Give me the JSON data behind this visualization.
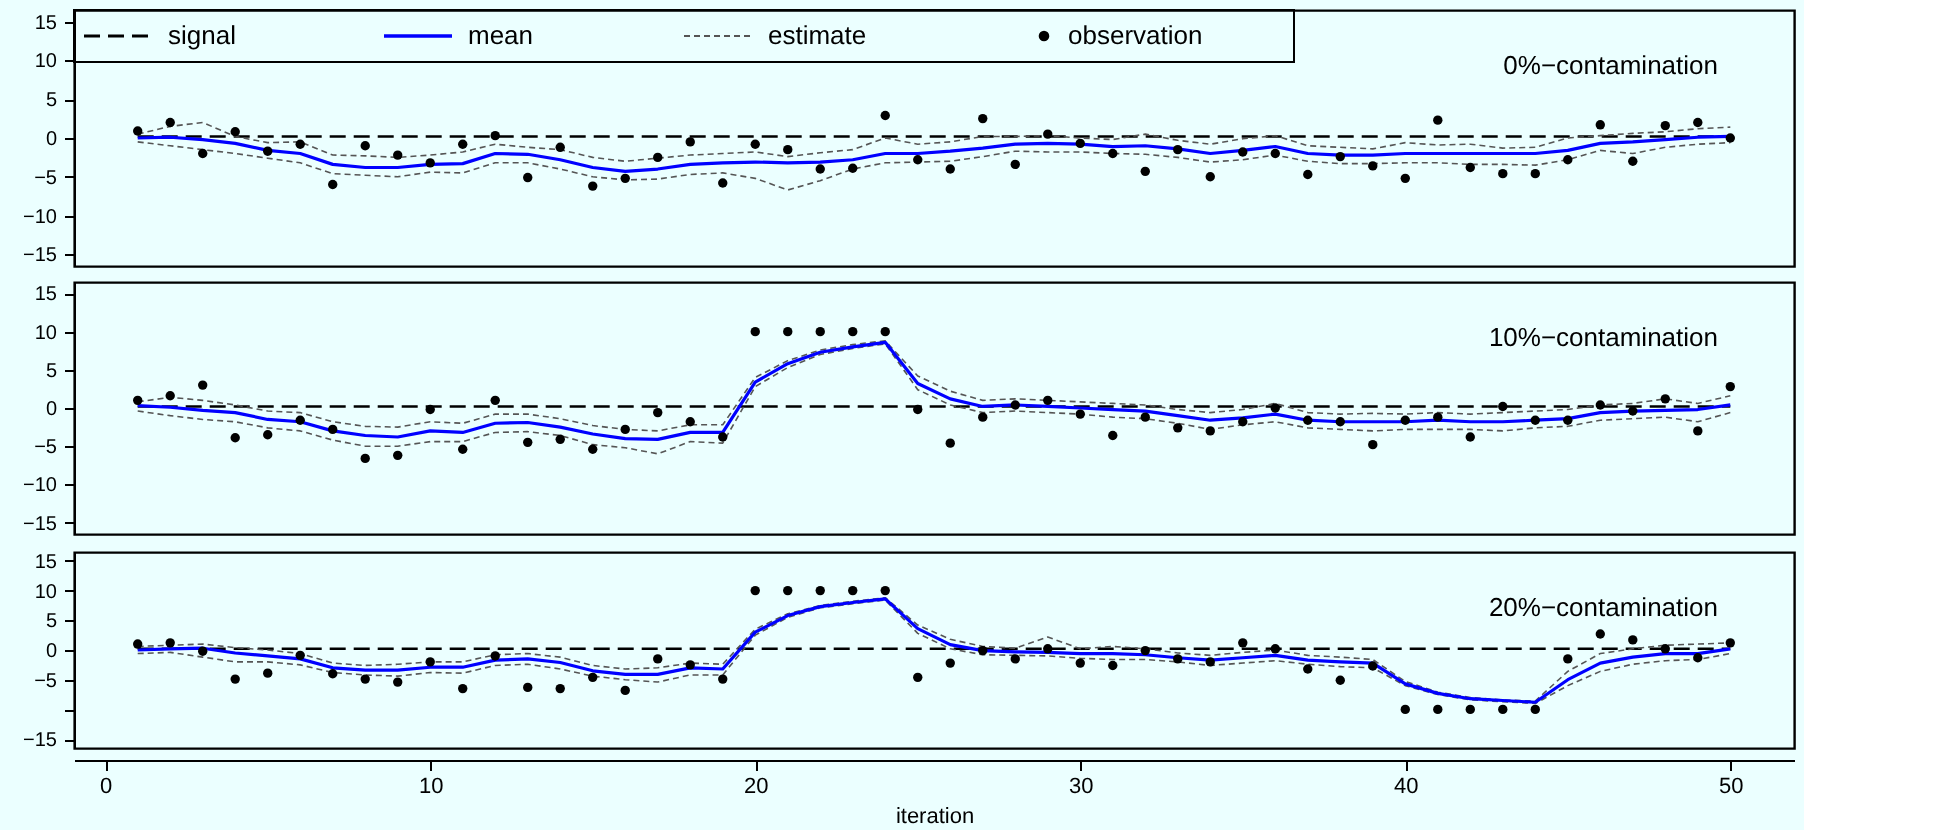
{
  "chart_data": [
    {
      "type": "line",
      "title": "0%−contamination",
      "legend": "top left",
      "tick_labels": "y",
      "x": [
        1,
        2,
        3,
        4,
        5,
        6,
        7,
        8,
        9,
        10,
        11,
        12,
        13,
        14,
        15,
        16,
        17,
        18,
        19,
        20,
        21,
        22,
        23,
        24,
        25,
        26,
        27,
        28,
        29,
        30,
        31,
        32,
        33,
        34,
        35,
        36,
        37,
        38,
        39,
        40,
        41,
        42,
        43,
        44,
        45,
        46,
        47,
        48,
        49,
        50
      ],
      "xlim": [
        -0.96,
        51.96
      ],
      "ylim": [
        -16.5,
        16.5
      ],
      "yticks": [
        -15,
        -10,
        -5,
        0,
        5,
        10,
        15
      ],
      "series": [
        {
          "name": "signal",
          "color": "#000000",
          "line_style": "dashed",
          "values": [
            0.2,
            0.2,
            0.2,
            0.2,
            0.2,
            0.2,
            0.2,
            0.2,
            0.2,
            0.2,
            0.2,
            0.2,
            0.2,
            0.2,
            0.2,
            0.2,
            0.2,
            0.2,
            0.2,
            0.2,
            0.2,
            0.2,
            0.2,
            0.2,
            0.2,
            0.2,
            0.2,
            0.2,
            0.2,
            0.2,
            0.2,
            0.2,
            0.2,
            0.2,
            0.2,
            0.2,
            0.2,
            0.2,
            0.2,
            0.2,
            0.2,
            0.2,
            0.2,
            0.2,
            0.2,
            0.2,
            0.2,
            0.2,
            0.2,
            0.2
          ]
        },
        {
          "name": "mean",
          "color": "#0000ff",
          "line_style": "solid",
          "values": [
            0,
            0.1,
            -0.2,
            -0.7,
            -1.6,
            -2,
            -3.4,
            -3.8,
            -3.8,
            -3.4,
            -3.3,
            -2,
            -2.1,
            -2.8,
            -3.8,
            -4.3,
            -4,
            -3.4,
            -3.2,
            -3.1,
            -3.2,
            -3.1,
            -2.8,
            -2,
            -2,
            -1.7,
            -1.3,
            -0.8,
            -0.7,
            -0.8,
            -1.1,
            -1,
            -1.4,
            -2,
            -1.6,
            -1.1,
            -2,
            -2.2,
            -2.2,
            -2,
            -2,
            -2,
            -2,
            -2,
            -1.6,
            -0.7,
            -0.5,
            -0.2,
            0.1,
            0.2
          ]
        },
        {
          "name": "estimate",
          "color": "#555555",
          "line_style": "dotted",
          "values": [
            0.5,
            1.5,
            2,
            0.2,
            -0.6,
            -0.5,
            -2.2,
            -2.3,
            -2.5,
            -2.2,
            -1.8,
            -0.8,
            -1.2,
            -1.5,
            -2.5,
            -3,
            -2.6,
            -2.2,
            -2,
            -1.8,
            -2.4,
            -1.9,
            -1.5,
            0,
            -0.8,
            -0.5,
            0.2,
            0.2,
            0.3,
            0,
            -0.2,
            0.5,
            -0.3,
            -0.8,
            -0.1,
            0.3,
            -1,
            -1.2,
            -1.4,
            -0.6,
            -0.9,
            -0.8,
            -1.3,
            -1.2,
            0,
            0.3,
            0.6,
            0.8,
            1.2,
            1.4
          ]
        },
        {
          "color": "#555555",
          "line_style": "dotted",
          "values": [
            -0.5,
            -1,
            -1.5,
            -2,
            -2.6,
            -3.2,
            -4.6,
            -4.8,
            -5,
            -4.4,
            -4.5,
            -3.2,
            -3.2,
            -4,
            -5,
            -5.4,
            -5.3,
            -4.7,
            -4.5,
            -5.2,
            -6.7,
            -5.5,
            -4,
            -3.2,
            -3.1,
            -3,
            -2.4,
            -1.7,
            -1.8,
            -1.8,
            -2,
            -2.1,
            -2.5,
            -3.1,
            -2.8,
            -2.2,
            -3,
            -3.3,
            -3.3,
            -3.2,
            -3.2,
            -3.4,
            -3.4,
            -3.5,
            -2.8,
            -1.6,
            -2,
            -1.2,
            -0.8,
            -0.6
          ]
        },
        {
          "name": "observation",
          "type": "scatter",
          "color": "#000000",
          "marker": "circle",
          "values": [
            0.9,
            2,
            -2,
            0.8,
            -1.7,
            -0.8,
            -6,
            -1,
            -2.2,
            -3.2,
            -0.8,
            0.3,
            -5.1,
            -1.2,
            -6.2,
            -5.2,
            -2.5,
            -0.5,
            -5.8,
            -0.8,
            -1.5,
            -4,
            -3.9,
            2.9,
            -2.8,
            -4,
            2.5,
            -3.4,
            0.5,
            -0.7,
            -2,
            -4.3,
            -1.5,
            -5,
            -1.8,
            -2,
            -4.7,
            -2.4,
            -3.6,
            -5.2,
            2.3,
            -3.8,
            -4.6,
            -4.6,
            -2.8,
            1.7,
            -3,
            1.6,
            2,
            0
          ]
        }
      ]
    },
    {
      "type": "line",
      "title": "10%−contamination",
      "tick_labels": "y",
      "x": [
        1,
        2,
        3,
        4,
        5,
        6,
        7,
        8,
        9,
        10,
        11,
        12,
        13,
        14,
        15,
        16,
        17,
        18,
        19,
        20,
        21,
        22,
        23,
        24,
        25,
        26,
        27,
        28,
        29,
        30,
        31,
        32,
        33,
        34,
        35,
        36,
        37,
        38,
        39,
        40,
        41,
        42,
        43,
        44,
        45,
        46,
        47,
        48,
        49,
        50
      ],
      "xlim": [
        -0.96,
        51.96
      ],
      "ylim": [
        -16.5,
        16.5
      ],
      "yticks": [
        -15,
        -10,
        -5,
        0,
        5,
        10,
        15
      ],
      "series": [
        {
          "color": "#000000",
          "line_style": "dashed",
          "values": [
            0.2,
            0.2,
            0.2,
            0.2,
            0.2,
            0.2,
            0.2,
            0.2,
            0.2,
            0.2,
            0.2,
            0.2,
            0.2,
            0.2,
            0.2,
            0.2,
            0.2,
            0.2,
            0.2,
            0.2,
            0.2,
            0.2,
            0.2,
            0.2,
            0.2,
            0.2,
            0.2,
            0.2,
            0.2,
            0.2,
            0.2,
            0.2,
            0.2,
            0.2,
            0.2,
            0.2,
            0.2,
            0.2,
            0.2,
            0.2,
            0.2,
            0.2,
            0.2,
            0.2,
            0.2,
            0.2,
            0.2,
            0.2,
            0.2,
            0.2
          ]
        },
        {
          "color": "#555555",
          "line_style": "dotted",
          "values": [
            0.8,
            1.4,
            1,
            0.4,
            -0.4,
            -0.6,
            -1.8,
            -2.4,
            -2.5,
            -1.8,
            -2,
            -0.8,
            -0.8,
            -1.4,
            -2.3,
            -2.8,
            -3,
            -2.2,
            -2.2,
            4,
            6.2,
            7.6,
            8.3,
            8.8,
            4.2,
            2.2,
            1,
            1.2,
            1,
            0.8,
            0.6,
            0.4,
            -0.2,
            -0.6,
            -0.2,
            0.6,
            -0.6,
            -0.8,
            -0.7,
            -0.8,
            -0.6,
            -0.8,
            -0.6,
            -0.4,
            -0.2,
            0.4,
            0.6,
            1.2,
            0.6,
            1.6
          ]
        },
        {
          "color": "#555555",
          "line_style": "dotted",
          "values": [
            -0.4,
            -1,
            -1.5,
            -1.8,
            -2.6,
            -3,
            -4.2,
            -5,
            -5,
            -4.4,
            -4.4,
            -3.2,
            -3.1,
            -3.6,
            -4.8,
            -5.2,
            -6,
            -4.4,
            -4.6,
            2.8,
            5.3,
            7,
            7.8,
            8.4,
            2.4,
            0.4,
            -0.6,
            -0.4,
            -0.6,
            -0.8,
            -1.2,
            -1.4,
            -2,
            -2.8,
            -2.2,
            -1.8,
            -2.6,
            -2.8,
            -3,
            -2.8,
            -2.8,
            -2.8,
            -3,
            -2.6,
            -2.4,
            -1.6,
            -1.4,
            -1.2,
            -1.8,
            -0.6
          ]
        },
        {
          "color": "#0000ff",
          "line_style": "solid",
          "values": [
            0.3,
            0.1,
            -0.3,
            -0.6,
            -1.5,
            -1.8,
            -3,
            -3.6,
            -3.8,
            -3,
            -3.2,
            -2,
            -1.9,
            -2.5,
            -3.4,
            -4,
            -4.1,
            -3.2,
            -3.2,
            3.4,
            5.8,
            7.3,
            8,
            8.6,
            3.2,
            1.2,
            0.2,
            0.4,
            0.2,
            0,
            -0.2,
            -0.4,
            -1,
            -1.6,
            -1.3,
            -0.8,
            -1.6,
            -1.8,
            -1.8,
            -1.8,
            -1.6,
            -1.8,
            -1.8,
            -1.6,
            -1.4,
            -0.6,
            -0.4,
            -0.3,
            -0.2,
            0.4
          ]
        },
        {
          "type": "scatter",
          "color": "#000000",
          "marker": "circle",
          "values": [
            1,
            1.6,
            3,
            -3.9,
            -3.5,
            -1.6,
            -2.8,
            -6.6,
            -6.2,
            -0.2,
            -5.4,
            1,
            -4.5,
            -4.1,
            -5.4,
            -2.8,
            -0.6,
            -1.8,
            -3.8,
            10,
            10,
            10,
            10,
            10,
            -0.2,
            -4.6,
            -1.2,
            0.4,
            1,
            -0.8,
            -3.6,
            -1.2,
            -2.6,
            -3,
            -1.8,
            0,
            -1.6,
            -1.8,
            -4.8,
            -1.6,
            -1.2,
            -3.8,
            0.2,
            -1.6,
            -1.6,
            0.4,
            -0.4,
            1.2,
            -3,
            2.8
          ]
        }
      ]
    },
    {
      "type": "line",
      "title": "20%−contamination",
      "xlabel": "iteration",
      "x": [
        1,
        2,
        3,
        4,
        5,
        6,
        7,
        8,
        9,
        10,
        11,
        12,
        13,
        14,
        15,
        16,
        17,
        18,
        19,
        20,
        21,
        22,
        23,
        24,
        25,
        26,
        27,
        28,
        29,
        30,
        31,
        32,
        33,
        34,
        35,
        36,
        37,
        38,
        39,
        40,
        41,
        42,
        43,
        44,
        45,
        46,
        47,
        48,
        49,
        50
      ],
      "xlim": [
        -0.96,
        51.96
      ],
      "xticks": [
        0,
        10,
        20,
        30,
        40,
        50
      ],
      "ylim": [
        -16.5,
        16.5
      ],
      "yticks": [
        -15,
        {
          "value": -10,
          "label": null
        },
        -5,
        0,
        5,
        10,
        15
      ],
      "series": [
        {
          "color": "#000000",
          "line_style": "dashed",
          "values": [
            0.2,
            0.2,
            0.2,
            0.2,
            0.2,
            0.2,
            0.2,
            0.2,
            0.2,
            0.2,
            0.2,
            0.2,
            0.2,
            0.2,
            0.2,
            0.2,
            0.2,
            0.2,
            0.2,
            0.2,
            0.2,
            0.2,
            0.2,
            0.2,
            0.2,
            0.2,
            0.2,
            0.2,
            0.2,
            0.2,
            0.2,
            0.2,
            0.2,
            0.2,
            0.2,
            0.2,
            0.2,
            0.2,
            0.2,
            0.2,
            0.2,
            0.2,
            0.2,
            0.2,
            0.2,
            0.2,
            0.2,
            0.2,
            0.2,
            0.2
          ]
        },
        {
          "color": "#555555",
          "line_style": "dotted",
          "values": [
            0.6,
            0.8,
            1,
            0.4,
            0,
            -0.6,
            -2.2,
            -2.6,
            -2.4,
            -2,
            -2,
            -0.8,
            -0.6,
            -1.2,
            -2.6,
            -3.2,
            -3,
            -2.2,
            -2.4,
            3.5,
            6.1,
            7.5,
            8.2,
            8.8,
            4.2,
            1.8,
            0.6,
            0.3,
            2.2,
            0.2,
            0.6,
            0.2,
            -0.5,
            -0.9,
            -0.4,
            0,
            -0.9,
            -1.2,
            -1.6,
            -5.3,
            -7.1,
            -8,
            -8.4,
            -8.6,
            -3.6,
            -0.6,
            0.2,
            0.8,
            1,
            1.2
          ]
        },
        {
          "color": "#555555",
          "line_style": "dotted",
          "values": [
            -0.6,
            -0.4,
            -1.2,
            -2,
            -2,
            -2.5,
            -3.8,
            -4.2,
            -4.4,
            -3.8,
            -3.9,
            -2.6,
            -2.4,
            -3.2,
            -4.4,
            -5,
            -5.4,
            -4.2,
            -4.2,
            2.5,
            5.5,
            7.1,
            7.8,
            8.4,
            2.8,
            0.2,
            -0.8,
            -0.9,
            -1,
            -1.4,
            -1.6,
            -1.6,
            -2,
            -2.6,
            -2.2,
            -1.8,
            -2.4,
            -2.8,
            -3,
            -6,
            -7.5,
            -8.4,
            -8.7,
            -9,
            -6,
            -3.6,
            -2.4,
            -1.8,
            -1.6,
            -0.6
          ]
        },
        {
          "color": "#0000ff",
          "line_style": "solid",
          "values": [
            0,
            0.2,
            0.3,
            -0.5,
            -1,
            -1.5,
            -3,
            -3.4,
            -3.4,
            -2.9,
            -2.9,
            -1.7,
            -1.5,
            -2.1,
            -3.5,
            -4.1,
            -4.1,
            -3,
            -3.2,
            3,
            5.8,
            7.3,
            8,
            8.6,
            3.6,
            0.9,
            -0.1,
            -0.3,
            -0.4,
            -0.6,
            -0.6,
            -0.8,
            -1.3,
            -1.7,
            -1.3,
            -0.9,
            -1.7,
            -2,
            -2.2,
            -5.7,
            -7.3,
            -8.2,
            -8.5,
            -8.8,
            -5,
            -2.2,
            -1.2,
            -0.6,
            -0.6,
            0.2
          ]
        },
        {
          "type": "scatter",
          "color": "#000000",
          "marker": "circle",
          "values": [
            1,
            1.2,
            -0.2,
            -4.9,
            -3.9,
            -0.9,
            -4,
            -4.9,
            -5.4,
            -2,
            -6.5,
            -1,
            -6.3,
            -6.5,
            -4.6,
            -6.8,
            -1.5,
            -2.5,
            -4.9,
            10,
            10,
            10,
            10,
            10,
            -4.6,
            -2.2,
            -0.1,
            -1.5,
            0.2,
            -2.2,
            -2.6,
            -0.1,
            -1.5,
            -2,
            1.2,
            0.2,
            -3.2,
            -5.1,
            -2.7,
            -10,
            -10,
            -10,
            -10,
            -10,
            -1.5,
            2.7,
            1.7,
            0.2,
            -1.3,
            1.2
          ]
        }
      ]
    }
  ]
}
